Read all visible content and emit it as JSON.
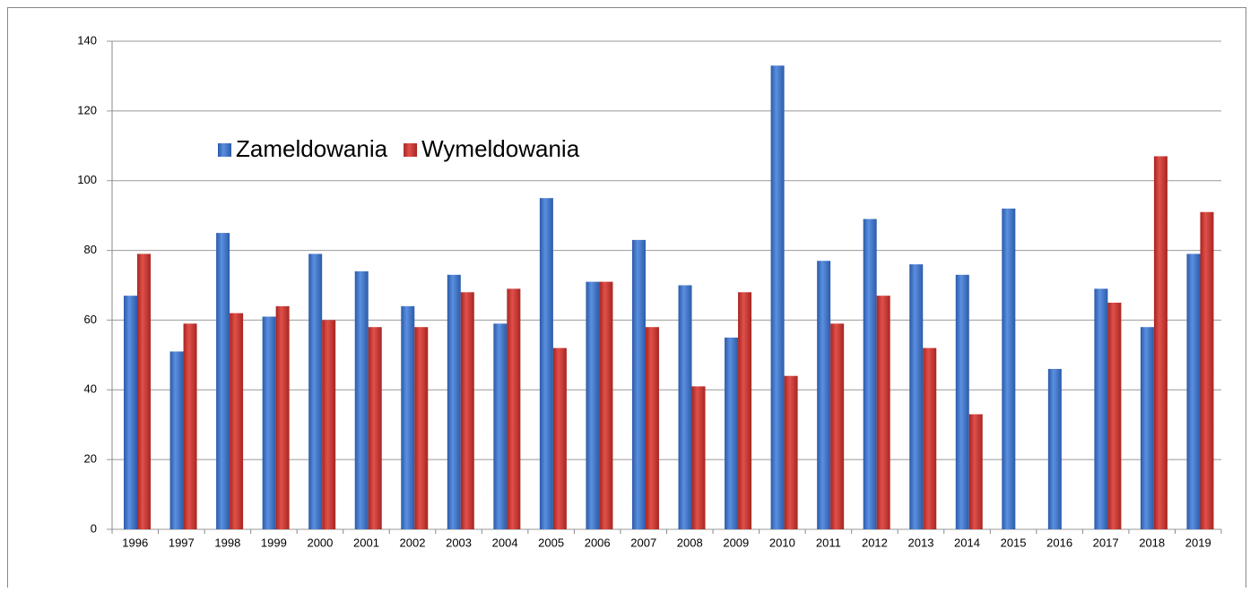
{
  "chart_data": {
    "type": "bar",
    "categories": [
      "1996",
      "1997",
      "1998",
      "1999",
      "2000",
      "2001",
      "2002",
      "2003",
      "2004",
      "2005",
      "2006",
      "2007",
      "2008",
      "2009",
      "2010",
      "2011",
      "2012",
      "2013",
      "2014",
      "2015",
      "2016",
      "2017",
      "2018",
      "2019"
    ],
    "series": [
      {
        "name": "Zameldowania",
        "color": "#3a6fc4",
        "values": [
          67,
          51,
          85,
          61,
          79,
          74,
          64,
          73,
          59,
          95,
          71,
          83,
          70,
          55,
          133,
          77,
          89,
          76,
          73,
          92,
          46,
          69,
          58,
          79
        ]
      },
      {
        "name": "Wymeldowania",
        "color": "#c9302c",
        "values": [
          79,
          59,
          62,
          64,
          60,
          58,
          58,
          68,
          69,
          52,
          71,
          58,
          41,
          68,
          44,
          59,
          67,
          52,
          33,
          null,
          null,
          65,
          107,
          91
        ]
      }
    ],
    "ylim": [
      0,
      140
    ],
    "yticks": [
      0,
      20,
      40,
      60,
      80,
      100,
      120,
      140
    ],
    "grid": true,
    "legend": "upper left"
  }
}
